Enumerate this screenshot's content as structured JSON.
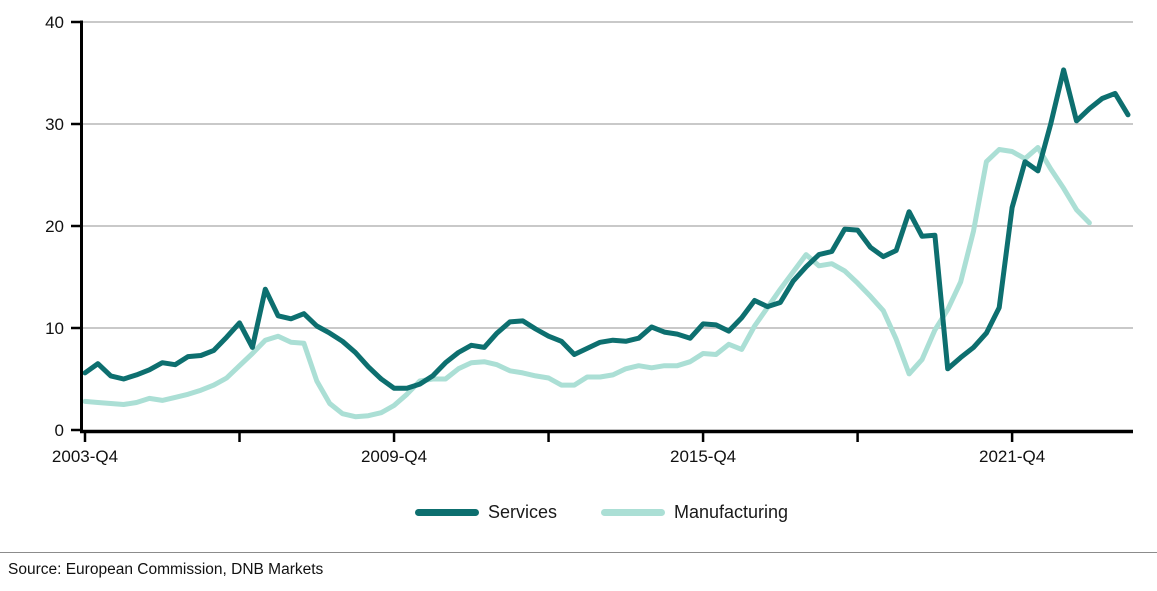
{
  "chart_data": {
    "type": "line",
    "title": "",
    "xlabel": "",
    "ylabel": "",
    "ylim": [
      0,
      40
    ],
    "y_ticks": [
      0,
      10,
      20,
      30,
      40
    ],
    "x_axis_unit": "quarter",
    "x_start": "2003-Q4",
    "x_minor_tick_quarters": [
      0,
      12,
      24,
      36,
      48,
      60,
      72
    ],
    "x_labeled_ticks": [
      {
        "quarter_index": 0,
        "label": "2003-Q4"
      },
      {
        "quarter_index": 24,
        "label": "2009-Q4"
      },
      {
        "quarter_index": 48,
        "label": "2015-Q4"
      },
      {
        "quarter_index": 72,
        "label": "2021-Q4"
      }
    ],
    "grid": "horizontal",
    "grid_color": "#c9c9c9",
    "axis_color": "#000000",
    "legend_position": "bottom-center",
    "series": [
      {
        "name": "Services",
        "color": "#0d6f6f",
        "start_quarter_index": 0,
        "values": [
          5.6,
          6.5,
          5.3,
          5.0,
          5.4,
          5.9,
          6.6,
          6.4,
          7.2,
          7.3,
          7.8,
          9.1,
          10.5,
          8.1,
          13.8,
          11.2,
          10.9,
          11.4,
          10.2,
          9.5,
          8.7,
          7.6,
          6.2,
          5.0,
          4.1,
          4.1,
          4.5,
          5.3,
          6.6,
          7.6,
          8.3,
          8.1,
          9.5,
          10.6,
          10.7,
          9.9,
          9.2,
          8.7,
          7.4,
          8.0,
          8.6,
          8.8,
          8.7,
          9.0,
          10.1,
          9.6,
          9.4,
          9.0,
          10.4,
          10.3,
          9.7,
          11.0,
          12.7,
          12.1,
          12.5,
          14.6,
          16.0,
          17.2,
          17.5,
          19.7,
          19.6,
          17.9,
          17.0,
          17.6,
          21.4,
          19.0,
          19.1,
          6.0,
          7.1,
          8.1,
          9.5,
          12.0,
          21.8,
          26.3,
          25.4,
          30.0,
          35.3,
          30.3,
          31.5,
          32.5,
          33.0,
          30.9
        ]
      },
      {
        "name": "Manufacturing",
        "color": "#abdfd5",
        "start_quarter_index": 0,
        "values": [
          2.8,
          2.7,
          2.6,
          2.5,
          2.7,
          3.1,
          2.9,
          3.2,
          3.5,
          3.9,
          4.4,
          5.1,
          6.3,
          7.5,
          8.8,
          9.2,
          8.6,
          8.5,
          4.8,
          2.6,
          1.6,
          1.3,
          1.4,
          1.7,
          2.4,
          3.5,
          4.8,
          5.0,
          5.0,
          6.0,
          6.6,
          6.7,
          6.4,
          5.8,
          5.6,
          5.3,
          5.1,
          4.4,
          4.4,
          5.2,
          5.2,
          5.4,
          6.0,
          6.3,
          6.1,
          6.3,
          6.3,
          6.7,
          7.5,
          7.4,
          8.4,
          7.9,
          10.2,
          12.0,
          13.8,
          15.5,
          17.2,
          16.1,
          16.3,
          15.6,
          14.4,
          13.1,
          11.7,
          8.9,
          5.5,
          6.9,
          9.8,
          11.8,
          14.5,
          19.5,
          26.3,
          27.5,
          27.3,
          26.6,
          27.7,
          25.6,
          23.7,
          21.6,
          20.3
        ]
      }
    ]
  },
  "legend": {
    "services_label": "Services",
    "manufacturing_label": "Manufacturing"
  },
  "footer": {
    "source": "Source: European Commission, DNB Markets"
  }
}
